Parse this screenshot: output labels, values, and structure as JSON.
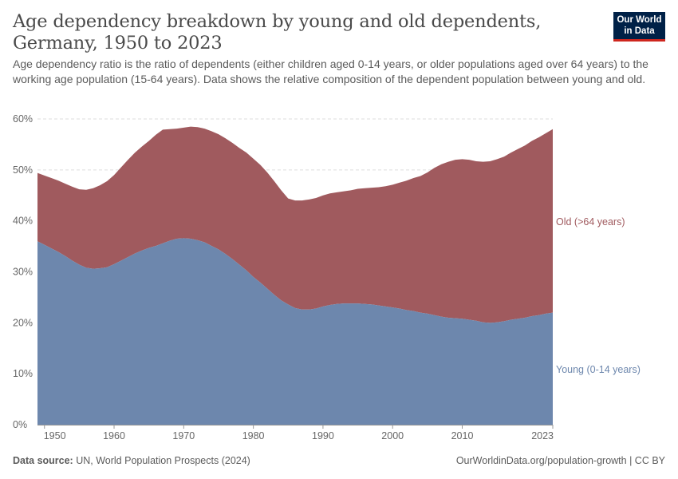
{
  "header": {
    "title": "Age dependency breakdown by young and old dependents, Germany, 1950 to 2023",
    "subtitle": "Age dependency ratio is the ratio of dependents (either children aged 0-14 years, or older populations aged over 64 years) to the working age population (15-64 years). Data shows the relative composition of the dependent population between young and old.",
    "logo_line1": "Our World",
    "logo_line2": "in Data"
  },
  "footer": {
    "source_label": "Data source:",
    "source_text": "UN, World Population Prospects (2024)",
    "link_text": "OurWorldinData.org/population-growth | CC BY"
  },
  "colors": {
    "young": "#6d87ad",
    "old": "#a05a5e",
    "grid": "#dddddd",
    "axis": "#666666"
  },
  "chart_data": {
    "type": "area",
    "stacked": true,
    "x_tick_labels": [
      "1950",
      "1960",
      "1970",
      "1980",
      "1990",
      "2000",
      "2010",
      "2023"
    ],
    "y_tick_labels": [
      "0%",
      "10%",
      "20%",
      "30%",
      "40%",
      "50%",
      "60%"
    ],
    "ylim": [
      0,
      60
    ],
    "xlim": [
      1949,
      2023
    ],
    "grid": "horizontal dashed",
    "x": [
      1949,
      1950,
      1951,
      1952,
      1953,
      1954,
      1955,
      1956,
      1957,
      1958,
      1959,
      1960,
      1961,
      1962,
      1963,
      1964,
      1965,
      1966,
      1967,
      1968,
      1969,
      1970,
      1971,
      1972,
      1973,
      1974,
      1975,
      1976,
      1977,
      1978,
      1979,
      1980,
      1981,
      1982,
      1983,
      1984,
      1985,
      1986,
      1987,
      1988,
      1989,
      1990,
      1991,
      1992,
      1993,
      1994,
      1995,
      1996,
      1997,
      1998,
      1999,
      2000,
      2001,
      2002,
      2003,
      2004,
      2005,
      2006,
      2007,
      2008,
      2009,
      2010,
      2011,
      2012,
      2013,
      2014,
      2015,
      2016,
      2017,
      2018,
      2019,
      2020,
      2021,
      2022,
      2023
    ],
    "series": [
      {
        "name": "Young (0-14 years)",
        "values": [
          36.0,
          35.3,
          34.6,
          33.9,
          33.1,
          32.2,
          31.4,
          30.8,
          30.6,
          30.7,
          30.9,
          31.5,
          32.2,
          32.9,
          33.6,
          34.2,
          34.7,
          35.1,
          35.6,
          36.1,
          36.5,
          36.6,
          36.5,
          36.2,
          35.8,
          35.1,
          34.4,
          33.5,
          32.5,
          31.4,
          30.3,
          29.0,
          27.9,
          26.7,
          25.5,
          24.4,
          23.6,
          22.9,
          22.6,
          22.6,
          22.8,
          23.2,
          23.5,
          23.7,
          23.8,
          23.8,
          23.8,
          23.7,
          23.6,
          23.4,
          23.2,
          23.0,
          22.8,
          22.5,
          22.3,
          22.0,
          21.8,
          21.5,
          21.2,
          21.0,
          20.9,
          20.8,
          20.6,
          20.4,
          20.1,
          20.0,
          20.1,
          20.3,
          20.6,
          20.8,
          21.0,
          21.3,
          21.5,
          21.8,
          22.0
        ]
      },
      {
        "name": "Old (>64 years)",
        "values": [
          13.4,
          13.6,
          13.8,
          14.0,
          14.2,
          14.5,
          14.8,
          15.3,
          15.8,
          16.3,
          16.9,
          17.5,
          18.3,
          19.1,
          19.8,
          20.4,
          21.0,
          21.8,
          22.3,
          21.9,
          21.6,
          21.7,
          22.0,
          22.2,
          22.3,
          22.5,
          22.6,
          22.7,
          22.8,
          22.9,
          23.1,
          23.2,
          23.1,
          22.8,
          22.3,
          21.6,
          20.8,
          21.1,
          21.4,
          21.6,
          21.7,
          21.8,
          21.9,
          21.9,
          22.0,
          22.2,
          22.5,
          22.7,
          22.9,
          23.2,
          23.6,
          24.1,
          24.7,
          25.4,
          26.1,
          26.8,
          27.7,
          28.9,
          29.9,
          30.6,
          31.1,
          31.3,
          31.4,
          31.3,
          31.5,
          31.7,
          32.0,
          32.3,
          32.8,
          33.3,
          33.8,
          34.4,
          34.9,
          35.4,
          36.0
        ]
      }
    ],
    "series_labels": [
      "Old (>64 years)",
      "Young (0-14 years)"
    ]
  }
}
